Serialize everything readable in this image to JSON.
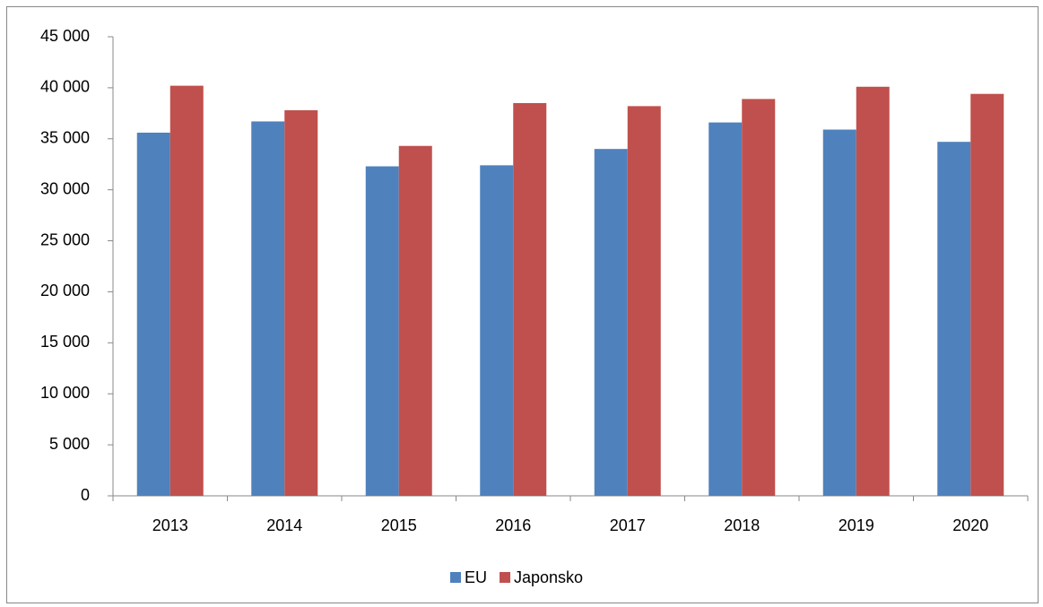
{
  "chart_data": {
    "type": "bar",
    "categories": [
      "2013",
      "2014",
      "2015",
      "2016",
      "2017",
      "2018",
      "2019",
      "2020"
    ],
    "series": [
      {
        "name": "EU",
        "color": "#4f81bd",
        "values": [
          35600,
          36700,
          32300,
          32400,
          34000,
          36600,
          35900,
          34700
        ]
      },
      {
        "name": "Japonsko",
        "color": "#c0504d",
        "values": [
          40200,
          37800,
          34300,
          38500,
          38200,
          38900,
          40100,
          39400
        ]
      }
    ],
    "ylim": [
      0,
      45000
    ],
    "yticks": [
      0,
      {
        "value": 5000,
        "label": "5 000"
      },
      {
        "value": 10000,
        "label": "10 000"
      },
      {
        "value": 15000,
        "label": "15 000"
      },
      {
        "value": 20000,
        "label": "20 000"
      },
      {
        "value": 25000,
        "label": "25 000"
      },
      {
        "value": 30000,
        "label": "30 000"
      },
      {
        "value": 35000,
        "label": "35 000"
      },
      {
        "value": 40000,
        "label": "40 000"
      },
      {
        "value": 45000,
        "label": "45 000"
      }
    ],
    "grid": false,
    "legend": "bottom"
  }
}
